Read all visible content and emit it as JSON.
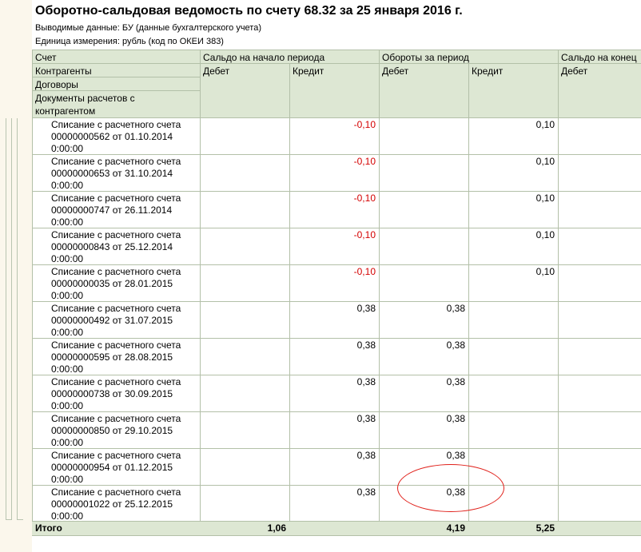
{
  "report": {
    "title": "Оборотно-сальдовая ведомость по счету 68.32 за 25 января 2016 г.",
    "meta_data": "Выводимые данные:  БУ (данные бухгалтерского учета)",
    "meta_unit": "Единица измерения:   рубль (код по ОКЕИ 383)"
  },
  "header": {
    "account": "Счет",
    "counterparties": "Контрагенты",
    "contracts": "Договоры",
    "documents": "Документы расчетов с контрагентом",
    "opening_balance": "Сальдо на начало периода",
    "turnover": "Обороты за период",
    "closing_balance": "Сальдо на конец",
    "debit": "Дебет",
    "credit": "Кредит"
  },
  "rows": [
    {
      "doc": "Списание с расчетного счета",
      "num": "00000000562 от 01.10.2014",
      "time": "0:00:00",
      "open_credit": "-0,10",
      "turn_debit": "",
      "turn_credit": "0,10"
    },
    {
      "doc": "Списание с расчетного счета",
      "num": "00000000653 от 31.10.2014",
      "time": "0:00:00",
      "open_credit": "-0,10",
      "turn_debit": "",
      "turn_credit": "0,10"
    },
    {
      "doc": "Списание с расчетного счета",
      "num": "00000000747 от 26.11.2014",
      "time": "0:00:00",
      "open_credit": "-0,10",
      "turn_debit": "",
      "turn_credit": "0,10"
    },
    {
      "doc": "Списание с расчетного счета",
      "num": "00000000843 от 25.12.2014",
      "time": "0:00:00",
      "open_credit": "-0,10",
      "turn_debit": "",
      "turn_credit": "0,10"
    },
    {
      "doc": "Списание с расчетного счета",
      "num": "00000000035 от 28.01.2015",
      "time": "0:00:00",
      "open_credit": "-0,10",
      "turn_debit": "",
      "turn_credit": "0,10"
    },
    {
      "doc": "Списание с расчетного счета",
      "num": "00000000492 от 31.07.2015",
      "time": "0:00:00",
      "open_credit": "0,38",
      "turn_debit": "0,38",
      "turn_credit": ""
    },
    {
      "doc": "Списание с расчетного счета",
      "num": "00000000595 от 28.08.2015",
      "time": "0:00:00",
      "open_credit": "0,38",
      "turn_debit": "0,38",
      "turn_credit": ""
    },
    {
      "doc": "Списание с расчетного счета",
      "num": "00000000738 от 30.09.2015",
      "time": "0:00:00",
      "open_credit": "0,38",
      "turn_debit": "0,38",
      "turn_credit": ""
    },
    {
      "doc": "Списание с расчетного счета",
      "num": "00000000850 от 29.10.2015",
      "time": "0:00:00",
      "open_credit": "0,38",
      "turn_debit": "0,38",
      "turn_credit": ""
    },
    {
      "doc": "Списание с расчетного счета",
      "num": "00000000954 от 01.12.2015",
      "time": "0:00:00",
      "open_credit": "0,38",
      "turn_debit": "0,38",
      "turn_credit": ""
    },
    {
      "doc": "Списание с расчетного счета",
      "num": "00000001022 от 25.12.2015",
      "time": "0:00:00",
      "open_credit": "0,38",
      "turn_debit": "0,38",
      "turn_credit": ""
    }
  ],
  "totals": {
    "label": "Итого",
    "open_credit": "1,06",
    "turn_debit": "4,19",
    "turn_credit": "5,25"
  },
  "colors": {
    "header_bg": "#dde7d3",
    "negative": "#d40000",
    "highlight_circle": "#e0201a"
  }
}
